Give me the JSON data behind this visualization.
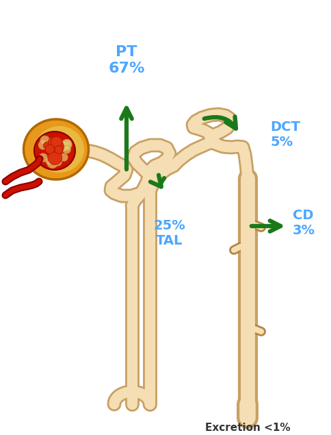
{
  "bg_color": "#ffffff",
  "tubule_color": "#F5DEB3",
  "tubule_edge_color": "#C8A064",
  "tubule_lw": 11,
  "tubule_elw": 15,
  "arrow_color": "#1a7a1a",
  "label_color": "#4da6ff",
  "pt_label": "PT\n67%",
  "tal_label": "25%\nTAL",
  "dct_label": "DCT\n5%",
  "cd_label": "CD\n3%",
  "excretion_label": "Excretion <1%",
  "label_fontsize": 14,
  "excretion_fontsize": 11,
  "bowman_fill": "#e8981a",
  "bowman_edge": "#b06800",
  "glom_fill": "#cc1100",
  "glom_edge": "#880000",
  "art_color": "#cc1100",
  "art_edge": "#880000"
}
